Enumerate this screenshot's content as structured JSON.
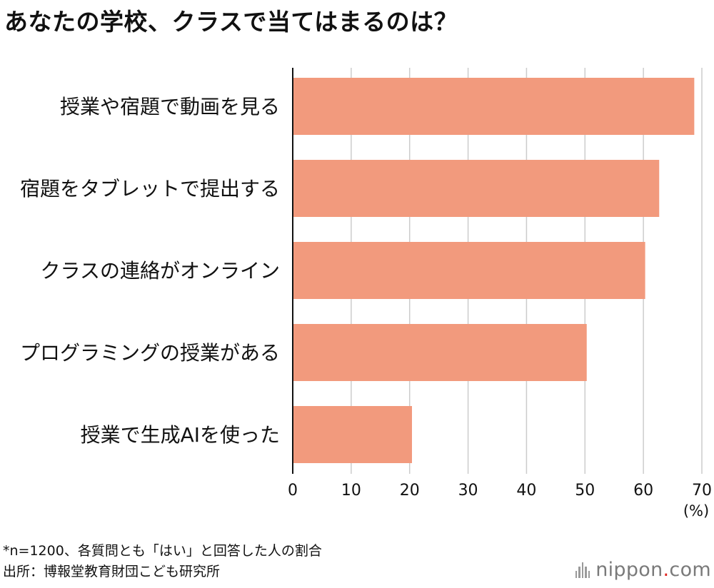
{
  "title": "あなたの学校、クラスで当てはまるのは？",
  "chart_data": {
    "type": "bar",
    "orientation": "horizontal",
    "categories": [
      "授業や宿題で動画を見る",
      "宿題をタブレットで提出する",
      "クラスの連絡がオンライン",
      "プログラミングの授業がある",
      "授業で生成AIを使った"
    ],
    "values": [
      68.7,
      62.7,
      60.3,
      50.3,
      20.4
    ],
    "xlim": [
      0,
      70
    ],
    "ticks": [
      "0",
      "10",
      "20",
      "30",
      "40",
      "50",
      "60",
      "70"
    ],
    "tick_values": [
      0,
      10,
      20,
      30,
      40,
      50,
      60,
      70
    ],
    "unit": "(%)",
    "bar_color": "#f29a7d",
    "grid_color": "#cccccc",
    "grid": true
  },
  "notes": {
    "line1": "*n=1200、各質問とも「はい」と回答した人の割合",
    "line2": "出所：博報堂教育財団こども研究所"
  },
  "logo": {
    "name": "nippon",
    "dot": ".",
    "tld": "com",
    "icon": "nippon-logo-icon"
  }
}
